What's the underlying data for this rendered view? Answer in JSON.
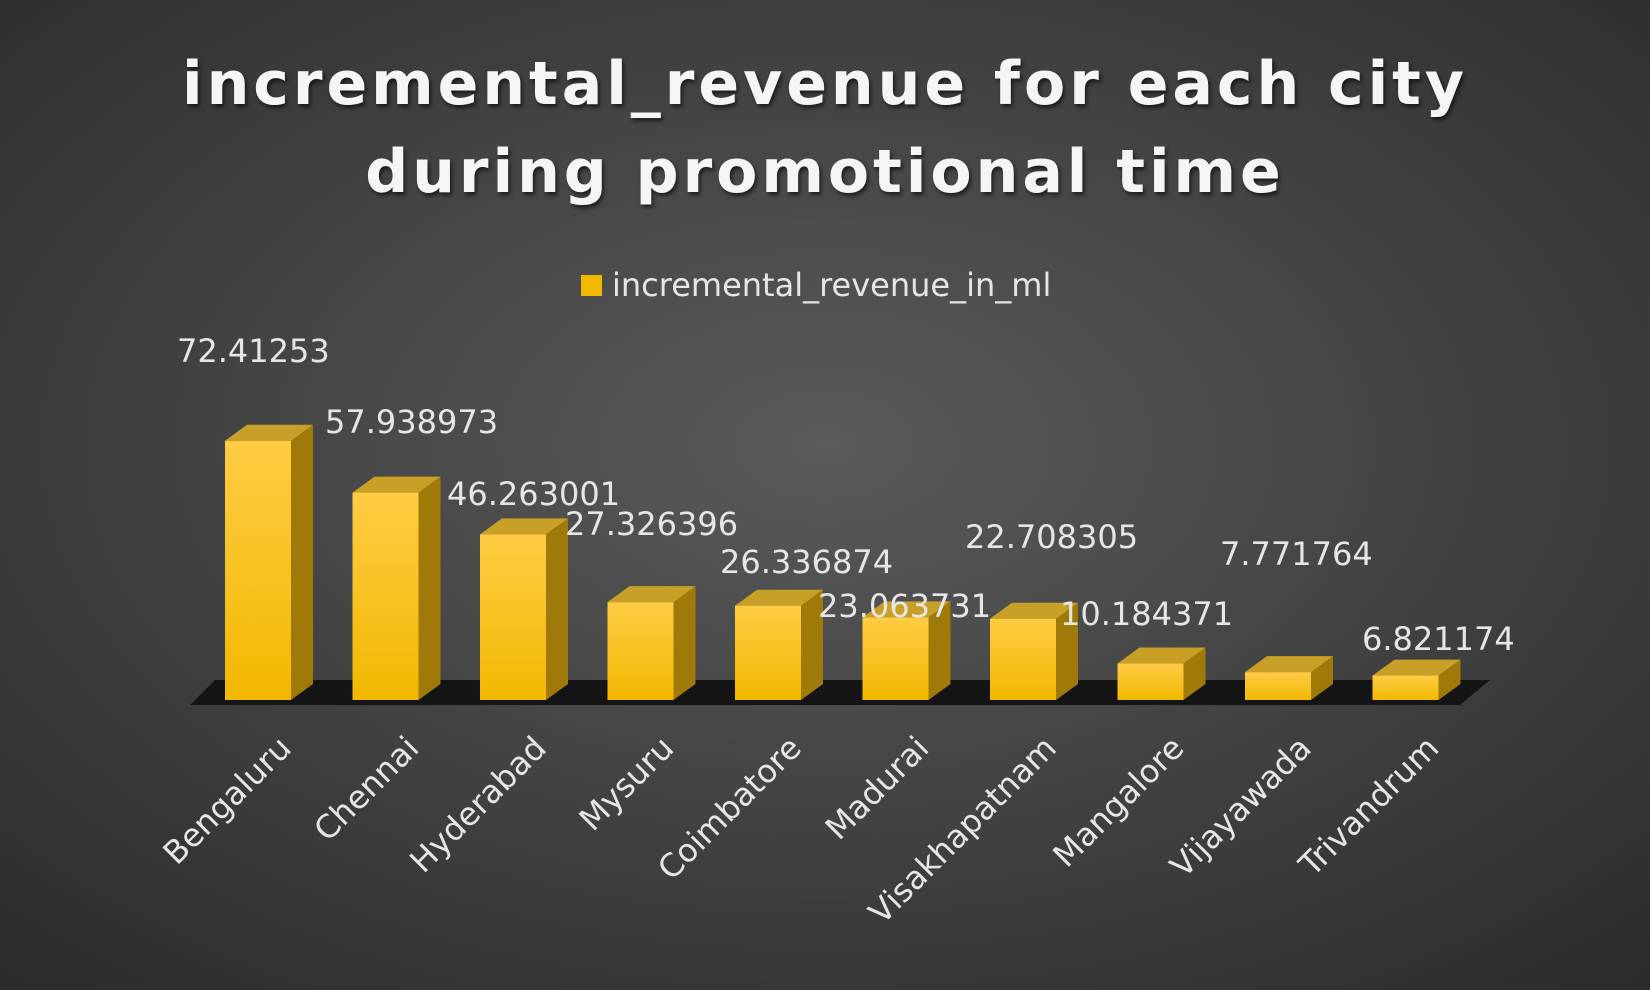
{
  "chart_data": {
    "type": "bar",
    "title_lines": [
      "incremental_revenue for each city",
      "during promotional time"
    ],
    "xlabel": "",
    "ylabel": "",
    "legend_position": "top",
    "grid": false,
    "style": "3d",
    "colors": {
      "background_center": "#5a5a5a",
      "background_edge": "#2a2a2a",
      "bar_front_top": "#ffcc44",
      "bar_front_bottom": "#f2b800",
      "bar_side": "#a07a08",
      "bar_top": "#c9a027",
      "floor": "#141414",
      "text": "#e6e6e6",
      "title": "#f5f5f5"
    },
    "categories": [
      "Bengaluru",
      "Chennai",
      "Hyderabad",
      "Mysuru",
      "Coimbatore",
      "Madurai",
      "Visakhapatnam",
      "Mangalore",
      "Vijayawada",
      "Trivandrum"
    ],
    "series": [
      {
        "name": "incremental_revenue_in_ml",
        "values": [
          72.41253,
          57.938973,
          46.263001,
          27.326396,
          26.336874,
          23.063731,
          22.708305,
          10.184371,
          7.771764,
          6.821174
        ],
        "labels": [
          "72.41253",
          "57.938973",
          "46.263001",
          "27.326396",
          "26.336874",
          "23.063731",
          "22.708305",
          "10.184371",
          "7.771764",
          "6.821174"
        ]
      }
    ]
  }
}
